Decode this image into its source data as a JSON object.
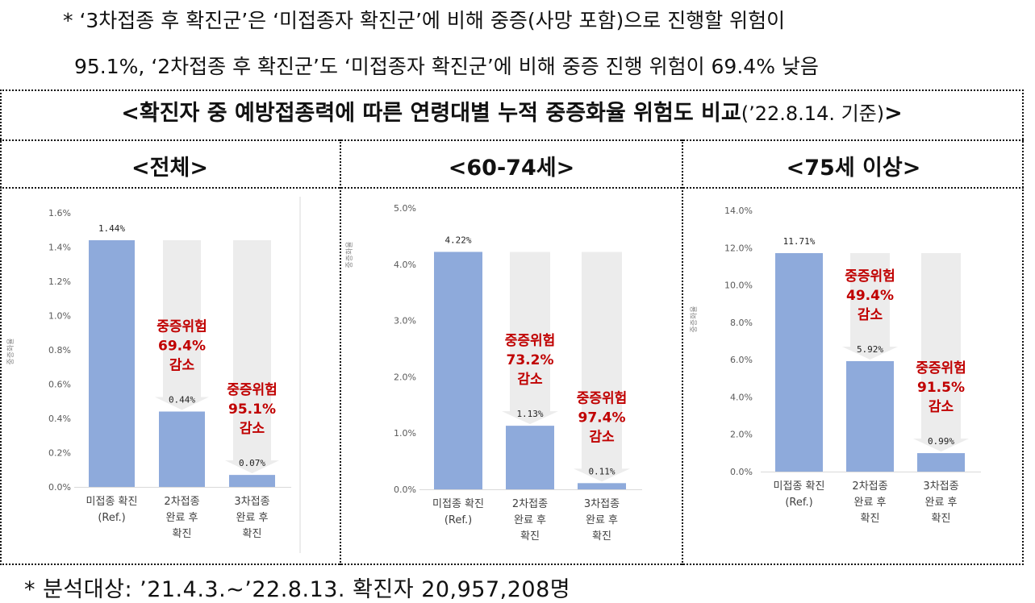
{
  "notes": {
    "top_line1": "* ‘3차접종 후 확진군’은 ‘미접종자 확진군’에 비해 중증(사망 포함)으로 진행할 위험이",
    "top_line2": "95.1%, ‘2차접종 후 확진군’도 ‘미접종자 확진군’에 비해 중증 진행 위험이 69.4% 낮음",
    "bottom": "* 분석대상: ’21.4.3.∼’22.8.13. 확진자 20,957,208명"
  },
  "figure": {
    "title": "<확진자 중 예방접종력에 따른 연령대별 누적 중증화율 위험도 비교",
    "title_date": "(’22.8.14. 기준)",
    "title_end": ">"
  },
  "colors": {
    "bar": "#8eaadb",
    "arrow": "#ececec",
    "annotation": "#c00000",
    "axis_text": "#595959"
  },
  "chart_data": [
    {
      "type": "bar",
      "panel_title": "<전체>",
      "ylabel": "중증화율",
      "ylim": [
        0,
        1.6
      ],
      "yticks": [
        "0.0%",
        "0.2%",
        "0.4%",
        "0.6%",
        "0.8%",
        "1.0%",
        "1.2%",
        "1.4%",
        "1.6%"
      ],
      "categories": [
        [
          "미접종 확진",
          "(Ref.)"
        ],
        [
          "2차접종",
          "완료 후",
          "확진"
        ],
        [
          "3차접종",
          "완료 후",
          "확진"
        ]
      ],
      "values": [
        1.44,
        0.44,
        0.07
      ],
      "data_labels": [
        "1.44%",
        "0.44%",
        "0.07%"
      ],
      "annotations": [
        {
          "category": 1,
          "lines": [
            "중증위험",
            "69.4%",
            "감소"
          ]
        },
        {
          "category": 2,
          "lines": [
            "중증위험",
            "95.1%",
            "감소"
          ]
        }
      ]
    },
    {
      "type": "bar",
      "panel_title": "<60-74세>",
      "ylabel": "중증화율",
      "ylim": [
        0,
        5.0
      ],
      "yticks": [
        "0.0%",
        "1.0%",
        "2.0%",
        "3.0%",
        "4.0%",
        "5.0%"
      ],
      "categories": [
        [
          "미접종 확진",
          "(Ref.)"
        ],
        [
          "2차접종",
          "완료 후",
          "확진"
        ],
        [
          "3차접종",
          "완료 후",
          "확진"
        ]
      ],
      "values": [
        4.22,
        1.13,
        0.11
      ],
      "data_labels": [
        "4.22%",
        "1.13%",
        "0.11%"
      ],
      "annotations": [
        {
          "category": 1,
          "lines": [
            "중증위험",
            "73.2%",
            "감소"
          ]
        },
        {
          "category": 2,
          "lines": [
            "중증위험",
            "97.4%",
            "감소"
          ]
        }
      ]
    },
    {
      "type": "bar",
      "panel_title": "<75세 이상>",
      "ylabel": "중증화율",
      "ylim": [
        0,
        14.0
      ],
      "yticks": [
        "0.0%",
        "2.0%",
        "4.0%",
        "6.0%",
        "8.0%",
        "10.0%",
        "12.0%",
        "14.0%"
      ],
      "categories": [
        [
          "미접종 확진",
          "(Ref.)"
        ],
        [
          "2차접종",
          "완료 후",
          "확진"
        ],
        [
          "3차접종",
          "완료 후",
          "확진"
        ]
      ],
      "values": [
        11.71,
        5.92,
        0.99
      ],
      "data_labels": [
        "11.71%",
        "5.92%",
        "0.99%"
      ],
      "annotations": [
        {
          "category": 1,
          "lines": [
            "중증위험",
            "49.4%",
            "감소"
          ]
        },
        {
          "category": 2,
          "lines": [
            "중증위험",
            "91.5%",
            "감소"
          ]
        }
      ]
    }
  ]
}
